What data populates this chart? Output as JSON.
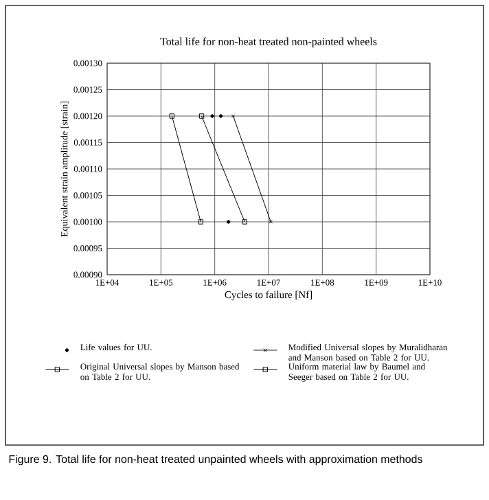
{
  "chart_data": {
    "type": "line",
    "title": "Total life for non-heat treated non-painted wheels",
    "xlabel": "Cycles to failure [Nf]",
    "ylabel": "Equivalent strain amplitude [strain]",
    "log": "x",
    "grid": true,
    "legend": "bottom",
    "line_style": "solid",
    "xlim": [
      10000,
      10000000000
    ],
    "xticks": [
      {
        "value": 10000,
        "label": "1E+04"
      },
      {
        "value": 100000,
        "label": "1E+05"
      },
      {
        "value": 1000000,
        "label": "1E+06"
      },
      {
        "value": 10000000,
        "label": "1E+07"
      },
      {
        "value": 100000000,
        "label": "1E+08"
      },
      {
        "value": 1000000000,
        "label": "1E+09"
      },
      {
        "value": 10000000000,
        "label": "1E+10"
      }
    ],
    "ylim": [
      0.0009,
      0.0013
    ],
    "yticks": [
      {
        "value": 0.0009,
        "label": "0.00090"
      },
      {
        "value": 0.00095,
        "label": "0.00095"
      },
      {
        "value": 0.001,
        "label": "0.00100"
      },
      {
        "value": 0.00105,
        "label": "0.00105"
      },
      {
        "value": 0.0011,
        "label": "0.00110"
      },
      {
        "value": 0.00115,
        "label": "0.00115"
      },
      {
        "value": 0.0012,
        "label": "0.00120"
      },
      {
        "value": 0.00125,
        "label": "0.00125"
      },
      {
        "value": 0.0013,
        "label": "0.00130"
      }
    ],
    "series": [
      {
        "name": "Life values for UU.",
        "type": "scatter",
        "marker": "circle",
        "color": "#000000",
        "x": [
          900000,
          1300000,
          1800000
        ],
        "values": [
          0.0012,
          0.0012,
          0.001
        ]
      },
      {
        "name": "Original Universal slopes by Manson based on Table 2 for UU.",
        "marker": "square",
        "color": "#000000",
        "x": [
          160000,
          550000
        ],
        "values": [
          0.0012,
          0.001
        ]
      },
      {
        "name": "Modified Universal slopes by Muralidharan and Manson based on Table 2 for UU.",
        "marker": "cross",
        "color": "#000000",
        "x": [
          2200000,
          11000000
        ],
        "values": [
          0.0012,
          0.001
        ]
      },
      {
        "name": "Uniform material law by Baumel and Seeger based on Table 2 for UU.",
        "marker": "square",
        "color": "#000000",
        "x": [
          570000,
          3600000
        ],
        "values": [
          0.0012,
          0.001
        ]
      }
    ],
    "annotations": [
      "Figure 9. Total life for non-heat treated unpainted wheels with approximation methods"
    ]
  }
}
